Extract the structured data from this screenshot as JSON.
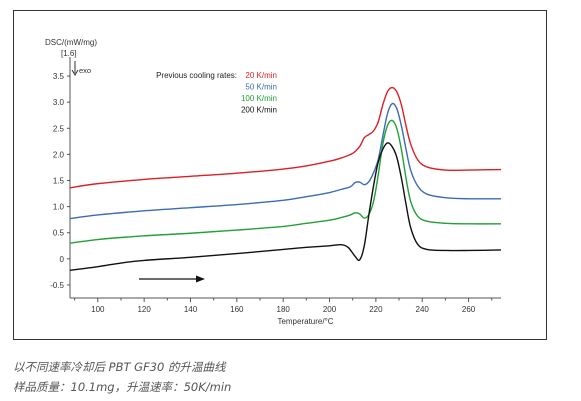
{
  "chart_data": {
    "type": "line",
    "ylabel": "DSC/(mW/mg)",
    "ylabel_sub": "[1.6]",
    "exo_label": "exo",
    "xlabel": "Temperature/°C",
    "xlim": [
      88,
      274
    ],
    "ylim": [
      -0.75,
      3.75
    ],
    "xticks": [
      100,
      120,
      140,
      160,
      180,
      200,
      220,
      240,
      260
    ],
    "yticks": [
      -0.5,
      0.0,
      0.5,
      1.0,
      1.5,
      2.0,
      2.5,
      3.0,
      3.5
    ],
    "ytick_labels": [
      "-0.5",
      "0",
      "0.5",
      "1.0",
      "1.5",
      "2.0",
      "2.5",
      "3.0",
      "3.5"
    ],
    "grid": false,
    "legend_title": "Previous cooling rates:",
    "legend_position": "top-center",
    "series": [
      {
        "name": "20 K/min",
        "color": "#dd1f26",
        "x": [
          88,
          100,
          120,
          140,
          160,
          180,
          190,
          200,
          205,
          210,
          213,
          215,
          217,
          219,
          221,
          223,
          225,
          227,
          229,
          231,
          233,
          235,
          238,
          242,
          250,
          260,
          274
        ],
        "y": [
          1.36,
          1.44,
          1.52,
          1.58,
          1.64,
          1.72,
          1.78,
          1.87,
          1.93,
          2.02,
          2.15,
          2.32,
          2.38,
          2.45,
          2.62,
          2.95,
          3.2,
          3.28,
          3.2,
          2.95,
          2.55,
          2.2,
          1.9,
          1.76,
          1.7,
          1.7,
          1.71
        ]
      },
      {
        "name": "50 K/min",
        "color": "#3b6cb4",
        "x": [
          88,
          100,
          120,
          140,
          160,
          180,
          190,
          200,
          205,
          209,
          211,
          213,
          215,
          217,
          219,
          221,
          223,
          225,
          227,
          229,
          231,
          233,
          235,
          238,
          242,
          250,
          260,
          274
        ],
        "y": [
          0.77,
          0.84,
          0.92,
          0.98,
          1.04,
          1.12,
          1.19,
          1.27,
          1.33,
          1.38,
          1.46,
          1.47,
          1.42,
          1.48,
          1.65,
          1.9,
          2.35,
          2.78,
          2.97,
          2.88,
          2.55,
          2.1,
          1.7,
          1.4,
          1.24,
          1.17,
          1.15,
          1.15
        ]
      },
      {
        "name": "100 K/min",
        "color": "#23a037",
        "x": [
          88,
          100,
          120,
          140,
          160,
          180,
          190,
          200,
          205,
          209,
          211,
          213,
          215,
          217,
          219,
          221,
          223,
          225,
          227,
          229,
          231,
          233,
          235,
          238,
          242,
          250,
          260,
          274
        ],
        "y": [
          0.3,
          0.37,
          0.44,
          0.49,
          0.55,
          0.62,
          0.68,
          0.74,
          0.79,
          0.84,
          0.88,
          0.86,
          0.78,
          0.85,
          1.1,
          1.6,
          2.2,
          2.55,
          2.65,
          2.5,
          2.1,
          1.55,
          1.1,
          0.82,
          0.72,
          0.68,
          0.67,
          0.67
        ]
      },
      {
        "name": "200 K/min",
        "color": "#111111",
        "x": [
          88,
          100,
          110,
          120,
          140,
          160,
          180,
          190,
          200,
          205,
          208,
          211,
          213,
          215,
          217,
          219,
          221,
          223,
          225,
          227,
          229,
          231,
          233,
          235,
          238,
          242,
          250,
          260,
          274
        ],
        "y": [
          -0.22,
          -0.15,
          -0.08,
          -0.03,
          0.03,
          0.1,
          0.18,
          0.22,
          0.25,
          0.27,
          0.22,
          0.05,
          -0.02,
          0.25,
          0.85,
          1.4,
          1.85,
          2.1,
          2.22,
          2.15,
          1.95,
          1.55,
          1.05,
          0.6,
          0.28,
          0.18,
          0.16,
          0.16,
          0.17
        ]
      }
    ]
  },
  "caption": {
    "line1": "以不同速率冷却后 PBT GF30 的升温曲线",
    "line2": "样品质量：10.1mg，升温速率：50K/min"
  }
}
